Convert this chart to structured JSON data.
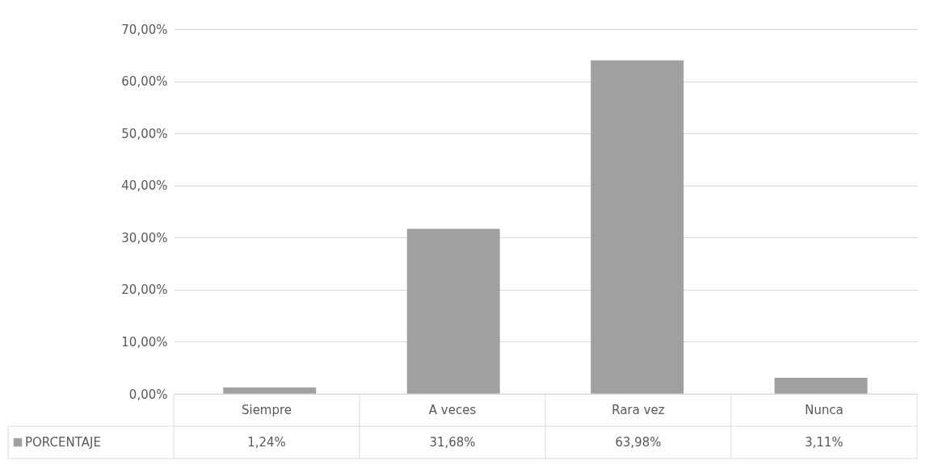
{
  "chart_data": {
    "type": "bar",
    "categories": [
      "Siempre",
      "A veces",
      "Rara vez",
      "Nunca"
    ],
    "series": [
      {
        "name": "PORCENTAJE",
        "color": "#a0a0a0",
        "values": [
          1.24,
          31.68,
          63.98,
          3.11
        ],
        "value_labels": [
          "1,24%",
          "31,68%",
          "63,98%",
          "3,11%"
        ]
      }
    ],
    "ylim": [
      0,
      70
    ],
    "yticks": [
      {
        "value": 0,
        "label": "0,00%"
      },
      {
        "value": 10,
        "label": "10,00%"
      },
      {
        "value": 20,
        "label": "20,00%"
      },
      {
        "value": 30,
        "label": "30,00%"
      },
      {
        "value": 40,
        "label": "40,00%"
      },
      {
        "value": 50,
        "label": "50,00%"
      },
      {
        "value": 60,
        "label": "60,00%"
      },
      {
        "value": 70,
        "label": "70,00%"
      }
    ],
    "grid": "y",
    "legend": "bottom left"
  }
}
